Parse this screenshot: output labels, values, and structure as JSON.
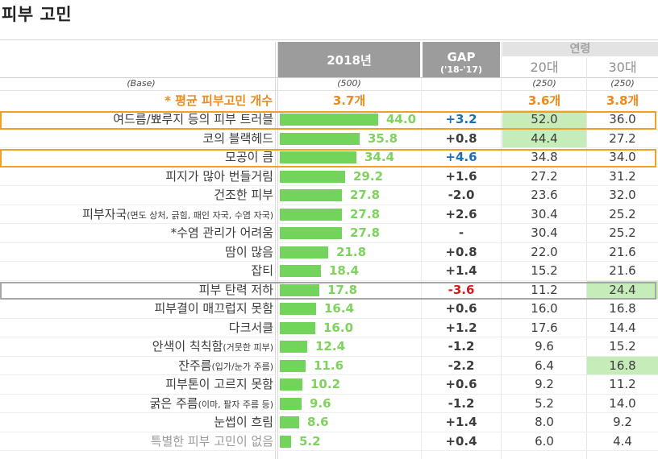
{
  "title": "피부 고민",
  "header": {
    "year_label": "2018년",
    "gap_label": "GAP",
    "gap_sub": "('18-'17)",
    "age_group_label": "연령",
    "age_20": "20대",
    "age_30": "30대"
  },
  "base": {
    "label": "(Base)",
    "total": "(500)",
    "age_20": "(250)",
    "age_30": "(250)"
  },
  "average": {
    "label": "* 평균 피부고민 개수",
    "total": "3.7개",
    "age_20": "3.6개",
    "age_30": "3.8개"
  },
  "highlights": {
    "bar_color": "#72d45a",
    "value_color": "#7ed35e",
    "avg_color": "#ef8a1a",
    "box_orange": "#f0a026",
    "box_grey": "#a6a6a6",
    "cell_highlight": "#c6ecb9",
    "gap_blue": "#1a6fb8",
    "gap_red": "#d61a1a"
  },
  "chart_data": {
    "type": "bar",
    "orientation": "horizontal",
    "title": "피부 고민",
    "series": [
      {
        "name": "2018년",
        "values": [
          44.0,
          35.8,
          34.4,
          29.2,
          27.8,
          27.8,
          27.8,
          21.8,
          18.4,
          17.8,
          16.4,
          16.0,
          12.4,
          11.6,
          10.2,
          9.6,
          8.6,
          5.2
        ]
      }
    ],
    "xlim": [
      0,
      60
    ],
    "rows": [
      {
        "label": "여드름/뾰루지 등의 피부 트러블",
        "value": "44.0",
        "gap": "+3.2",
        "age_20": "52.0",
        "age_30": "36.0",
        "box": "orange",
        "hl20": true,
        "hl30": false,
        "gap_color": "blue"
      },
      {
        "label": "코의 블랙헤드",
        "value": "35.8",
        "gap": "+0.8",
        "age_20": "44.4",
        "age_30": "27.2",
        "box": "",
        "hl20": true,
        "hl30": false,
        "gap_color": ""
      },
      {
        "label": "모공이 큼",
        "value": "34.4",
        "gap": "+4.6",
        "age_20": "34.8",
        "age_30": "34.0",
        "box": "orange",
        "hl20": false,
        "hl30": false,
        "gap_color": "blue"
      },
      {
        "label": "피지가 많아 번들거림",
        "value": "29.2",
        "gap": "+1.6",
        "age_20": "27.2",
        "age_30": "31.2",
        "box": "",
        "hl20": false,
        "hl30": false,
        "gap_color": ""
      },
      {
        "label": "건조한 피부",
        "value": "27.8",
        "gap": "-2.0",
        "age_20": "23.6",
        "age_30": "32.0",
        "box": "",
        "hl20": false,
        "hl30": false,
        "gap_color": ""
      },
      {
        "label": "피부자국",
        "label_small": "(면도 상처, 긁힘, 패인 자국, 수염 자국)",
        "value": "27.8",
        "gap": "+2.6",
        "age_20": "30.4",
        "age_30": "25.2",
        "box": "",
        "hl20": false,
        "hl30": false,
        "gap_color": ""
      },
      {
        "label": "*수염 관리가 어려움",
        "value": "27.8",
        "gap": "-",
        "age_20": "30.4",
        "age_30": "25.2",
        "box": "",
        "hl20": false,
        "hl30": false,
        "gap_color": ""
      },
      {
        "label": "땀이 많음",
        "value": "21.8",
        "gap": "+0.8",
        "age_20": "22.0",
        "age_30": "21.6",
        "box": "",
        "hl20": false,
        "hl30": false,
        "gap_color": ""
      },
      {
        "label": "잡티",
        "value": "18.4",
        "gap": "+1.4",
        "age_20": "15.2",
        "age_30": "21.6",
        "box": "",
        "hl20": false,
        "hl30": false,
        "gap_color": ""
      },
      {
        "label": "피부 탄력 저하",
        "value": "17.8",
        "gap": "-3.6",
        "age_20": "11.2",
        "age_30": "24.4",
        "box": "grey",
        "hl20": false,
        "hl30": true,
        "gap_color": "red"
      },
      {
        "label": "피부결이 매끄럽지 못함",
        "value": "16.4",
        "gap": "+0.6",
        "age_20": "16.0",
        "age_30": "16.8",
        "box": "",
        "hl20": false,
        "hl30": false,
        "gap_color": ""
      },
      {
        "label": "다크서클",
        "value": "16.0",
        "gap": "+1.2",
        "age_20": "17.6",
        "age_30": "14.4",
        "box": "",
        "hl20": false,
        "hl30": false,
        "gap_color": ""
      },
      {
        "label": "안색이 칙칙함",
        "label_small": "(거뭇한 피부)",
        "value": "12.4",
        "gap": "-1.2",
        "age_20": "9.6",
        "age_30": "15.2",
        "box": "",
        "hl20": false,
        "hl30": false,
        "gap_color": ""
      },
      {
        "label": "잔주름",
        "label_small": "(입가/눈가 주름)",
        "value": "11.6",
        "gap": "-2.2",
        "age_20": "6.4",
        "age_30": "16.8",
        "box": "",
        "hl20": false,
        "hl30": true,
        "gap_color": ""
      },
      {
        "label": "피부톤이 고르지 못함",
        "value": "10.2",
        "gap": "+0.6",
        "age_20": "9.2",
        "age_30": "11.2",
        "box": "",
        "hl20": false,
        "hl30": false,
        "gap_color": ""
      },
      {
        "label": "굵은 주름",
        "label_small": "(이마, 팔자 주름 등)",
        "value": "9.6",
        "gap": "-1.2",
        "age_20": "5.2",
        "age_30": "14.0",
        "box": "",
        "hl20": false,
        "hl30": false,
        "gap_color": ""
      },
      {
        "label": "눈썹이 흐림",
        "value": "8.6",
        "gap": "+1.4",
        "age_20": "8.0",
        "age_30": "9.2",
        "box": "",
        "hl20": false,
        "hl30": false,
        "gap_color": ""
      },
      {
        "label": "특별한 피부 고민이 없음",
        "value": "5.2",
        "gap": "+0.4",
        "age_20": "6.0",
        "age_30": "4.4",
        "box": "",
        "hl20": false,
        "hl30": false,
        "gap_color": "",
        "faded": true
      }
    ]
  }
}
